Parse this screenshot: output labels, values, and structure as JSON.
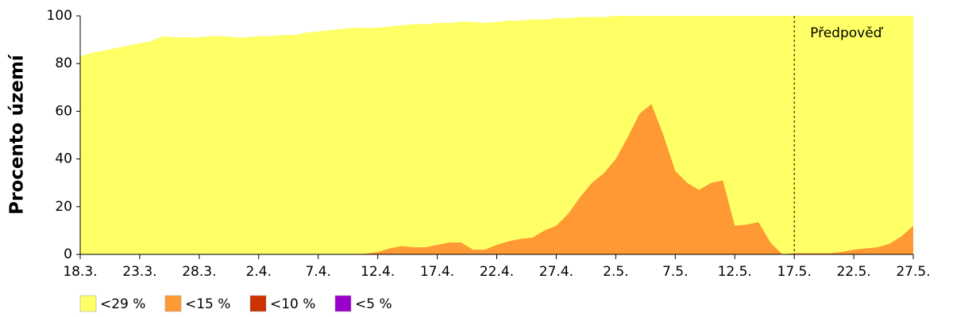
{
  "chart_data": {
    "type": "area",
    "y_label": "Procento území",
    "categories": [
      "18.3.",
      null,
      null,
      null,
      null,
      "23.3.",
      null,
      null,
      null,
      null,
      "28.3.",
      null,
      null,
      null,
      null,
      "2.4.",
      null,
      null,
      null,
      null,
      "7.4.",
      null,
      null,
      null,
      null,
      "12.4.",
      null,
      null,
      null,
      null,
      "17.4.",
      null,
      null,
      null,
      null,
      "22.4.",
      null,
      null,
      null,
      null,
      "27.4.",
      null,
      null,
      null,
      null,
      "2.5.",
      null,
      null,
      null,
      null,
      "7.5.",
      null,
      null,
      null,
      null,
      "12.5.",
      null,
      null,
      null,
      null,
      "17.5.",
      null,
      null,
      null,
      null,
      "22.5.",
      null,
      null,
      null,
      null,
      "27.5."
    ],
    "series": [
      {
        "name": "<29 %",
        "color": "#ffff66",
        "values": [
          83,
          84.5,
          85.5,
          86.5,
          87.5,
          88.5,
          89.5,
          91.5,
          91,
          91,
          91,
          91.5,
          91.5,
          91,
          91,
          91.5,
          91.5,
          92,
          92,
          93,
          93.5,
          94,
          94.5,
          95,
          95,
          95,
          95.5,
          96,
          96.5,
          96.5,
          97,
          97,
          97.5,
          97.5,
          97,
          97.5,
          98,
          98,
          98.5,
          98.5,
          99,
          99,
          99.5,
          99.5,
          99.5,
          100,
          100,
          100,
          100,
          100,
          100,
          100,
          100,
          100,
          100,
          100,
          100,
          100,
          100,
          100,
          100,
          100,
          100,
          100,
          100,
          100,
          100,
          100,
          100,
          100,
          100
        ]
      },
      {
        "name": "<15 %",
        "color": "#ff9933",
        "values": [
          0,
          0,
          0,
          0,
          0,
          0,
          0,
          0,
          0,
          0,
          0,
          0,
          0,
          0,
          0,
          0,
          0,
          0,
          0,
          0,
          0,
          0,
          0,
          0,
          0.3,
          1,
          2.5,
          3.5,
          3,
          3,
          4,
          5,
          5,
          2,
          2,
          4,
          5.5,
          6.5,
          7,
          10,
          12,
          17,
          24,
          30,
          34,
          40,
          49,
          59,
          63,
          50,
          35,
          30,
          27,
          30,
          31,
          12,
          12.5,
          13.5,
          5,
          0,
          0.5,
          0.5,
          0.5,
          0.5,
          1,
          2,
          2.5,
          3,
          4.5,
          7.5,
          12
        ]
      },
      {
        "name": "<10 %",
        "color": "#cc3300",
        "values": [
          0,
          0,
          0,
          0,
          0,
          0,
          0,
          0,
          0,
          0,
          0,
          0,
          0,
          0,
          0,
          0,
          0,
          0,
          0,
          0,
          0,
          0,
          0,
          0,
          0,
          0,
          0,
          0,
          0,
          0,
          0,
          0,
          0,
          0,
          0,
          0,
          0,
          0,
          0,
          0,
          0,
          0,
          0,
          0,
          0,
          0,
          0,
          0,
          0,
          0,
          0,
          0,
          0,
          0,
          0,
          0,
          0,
          0,
          0,
          0,
          0,
          0,
          0,
          0,
          0,
          0,
          0,
          0,
          0,
          0,
          0
        ]
      },
      {
        "name": "<5 %",
        "color": "#9900cc",
        "values": [
          0,
          0,
          0,
          0,
          0,
          0,
          0,
          0,
          0,
          0,
          0,
          0,
          0,
          0,
          0,
          0,
          0,
          0,
          0,
          0,
          0,
          0,
          0,
          0,
          0,
          0,
          0,
          0,
          0,
          0,
          0,
          0,
          0,
          0,
          0,
          0,
          0,
          0,
          0,
          0,
          0,
          0,
          0,
          0,
          0,
          0,
          0,
          0,
          0,
          0,
          0,
          0,
          0,
          0,
          0,
          0,
          0,
          0,
          0,
          0,
          0,
          0,
          0,
          0,
          0,
          0,
          0,
          0,
          0,
          0,
          0
        ]
      }
    ],
    "ylim": [
      0,
      100
    ],
    "yticks": [
      0,
      20,
      40,
      60,
      80,
      100
    ],
    "forecast_label": "Předpověď",
    "forecast_start": 60,
    "legend": "bottom-left"
  }
}
